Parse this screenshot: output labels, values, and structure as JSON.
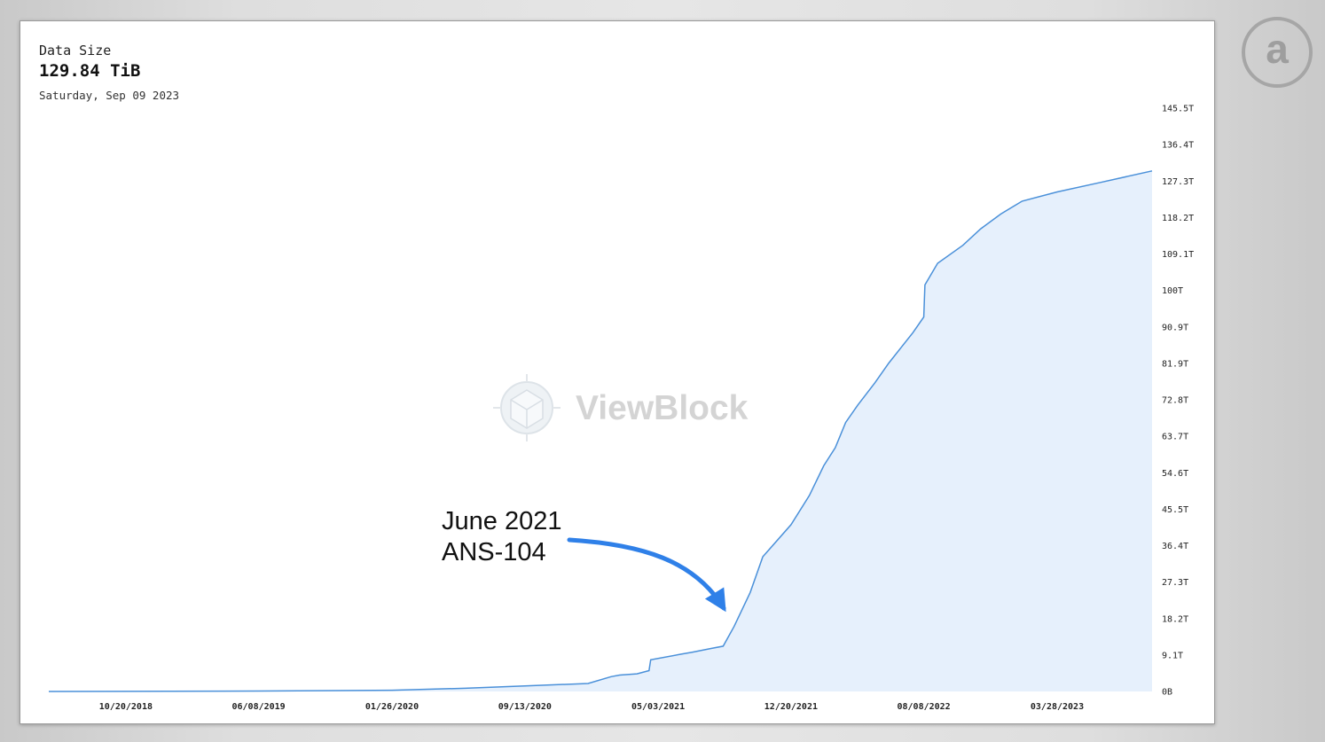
{
  "header": {
    "metric_label": "Data Size",
    "metric_value": "129.84 TiB",
    "date": "Saturday, Sep 09 2023"
  },
  "watermark": {
    "text": "ViewBlock"
  },
  "annotation": {
    "line1": "June 2021",
    "line2": "ANS-104"
  },
  "logo": {
    "glyph": "a",
    "icon": "arweave-logo-icon"
  },
  "colors": {
    "line": "#4a90d9",
    "fill": "#e6f0fc",
    "arrow": "#2f80e8",
    "background": "#ffffff"
  },
  "chart_data": {
    "type": "area",
    "title": "Data Size",
    "xlabel": "",
    "ylabel": "",
    "unit": "TiB",
    "y_axis_side": "right",
    "grid": false,
    "legend": "none",
    "ylim": [
      0,
      145.5
    ],
    "yticks": [
      "0B",
      "9.1T",
      "18.2T",
      "27.3T",
      "36.4T",
      "45.5T",
      "54.6T",
      "63.7T",
      "72.8T",
      "81.9T",
      "90.9T",
      "100T",
      "109.1T",
      "118.2T",
      "127.3T",
      "136.4T",
      "145.5T"
    ],
    "xticks": [
      "10/20/2018",
      "06/08/2019",
      "01/26/2020",
      "09/13/2020",
      "05/03/2021",
      "12/20/2021",
      "08/08/2022",
      "03/28/2023"
    ],
    "series": [
      {
        "points": [
          [
            "2018-06-08",
            0.0
          ],
          [
            "2019-06-08",
            0.1
          ],
          [
            "2020-01-26",
            0.3
          ],
          [
            "2020-06-01",
            0.8
          ],
          [
            "2020-09-13",
            1.4
          ],
          [
            "2021-01-01",
            2.0
          ],
          [
            "2021-02-10",
            3.7
          ],
          [
            "2021-02-25",
            4.1
          ],
          [
            "2021-03-27",
            4.4
          ],
          [
            "2021-04-17",
            5.2
          ],
          [
            "2021-04-20",
            7.9
          ],
          [
            "2021-06-12",
            9.3
          ],
          [
            "2021-07-01",
            9.8
          ],
          [
            "2021-08-02",
            10.7
          ],
          [
            "2021-08-24",
            11.3
          ],
          [
            "2021-09-12",
            16.2
          ],
          [
            "2021-10-10",
            24.7
          ],
          [
            "2021-11-01",
            33.6
          ],
          [
            "2021-12-20",
            41.6
          ],
          [
            "2022-01-21",
            48.9
          ],
          [
            "2022-02-15",
            56.3
          ],
          [
            "2022-03-07",
            60.8
          ],
          [
            "2022-03-25",
            67.1
          ],
          [
            "2022-04-15",
            71.4
          ],
          [
            "2022-05-15",
            77.0
          ],
          [
            "2022-06-08",
            81.9
          ],
          [
            "2022-07-20",
            89.5
          ],
          [
            "2022-08-08",
            93.4
          ],
          [
            "2022-08-10",
            101.4
          ],
          [
            "2022-09-01",
            106.8
          ],
          [
            "2022-10-15",
            111.3
          ],
          [
            "2022-11-15",
            115.4
          ],
          [
            "2022-12-20",
            119.1
          ],
          [
            "2023-01-26",
            122.3
          ],
          [
            "2023-03-28",
            124.6
          ],
          [
            "2023-06-12",
            127.0
          ],
          [
            "2023-09-09",
            129.84
          ]
        ]
      }
    ]
  }
}
